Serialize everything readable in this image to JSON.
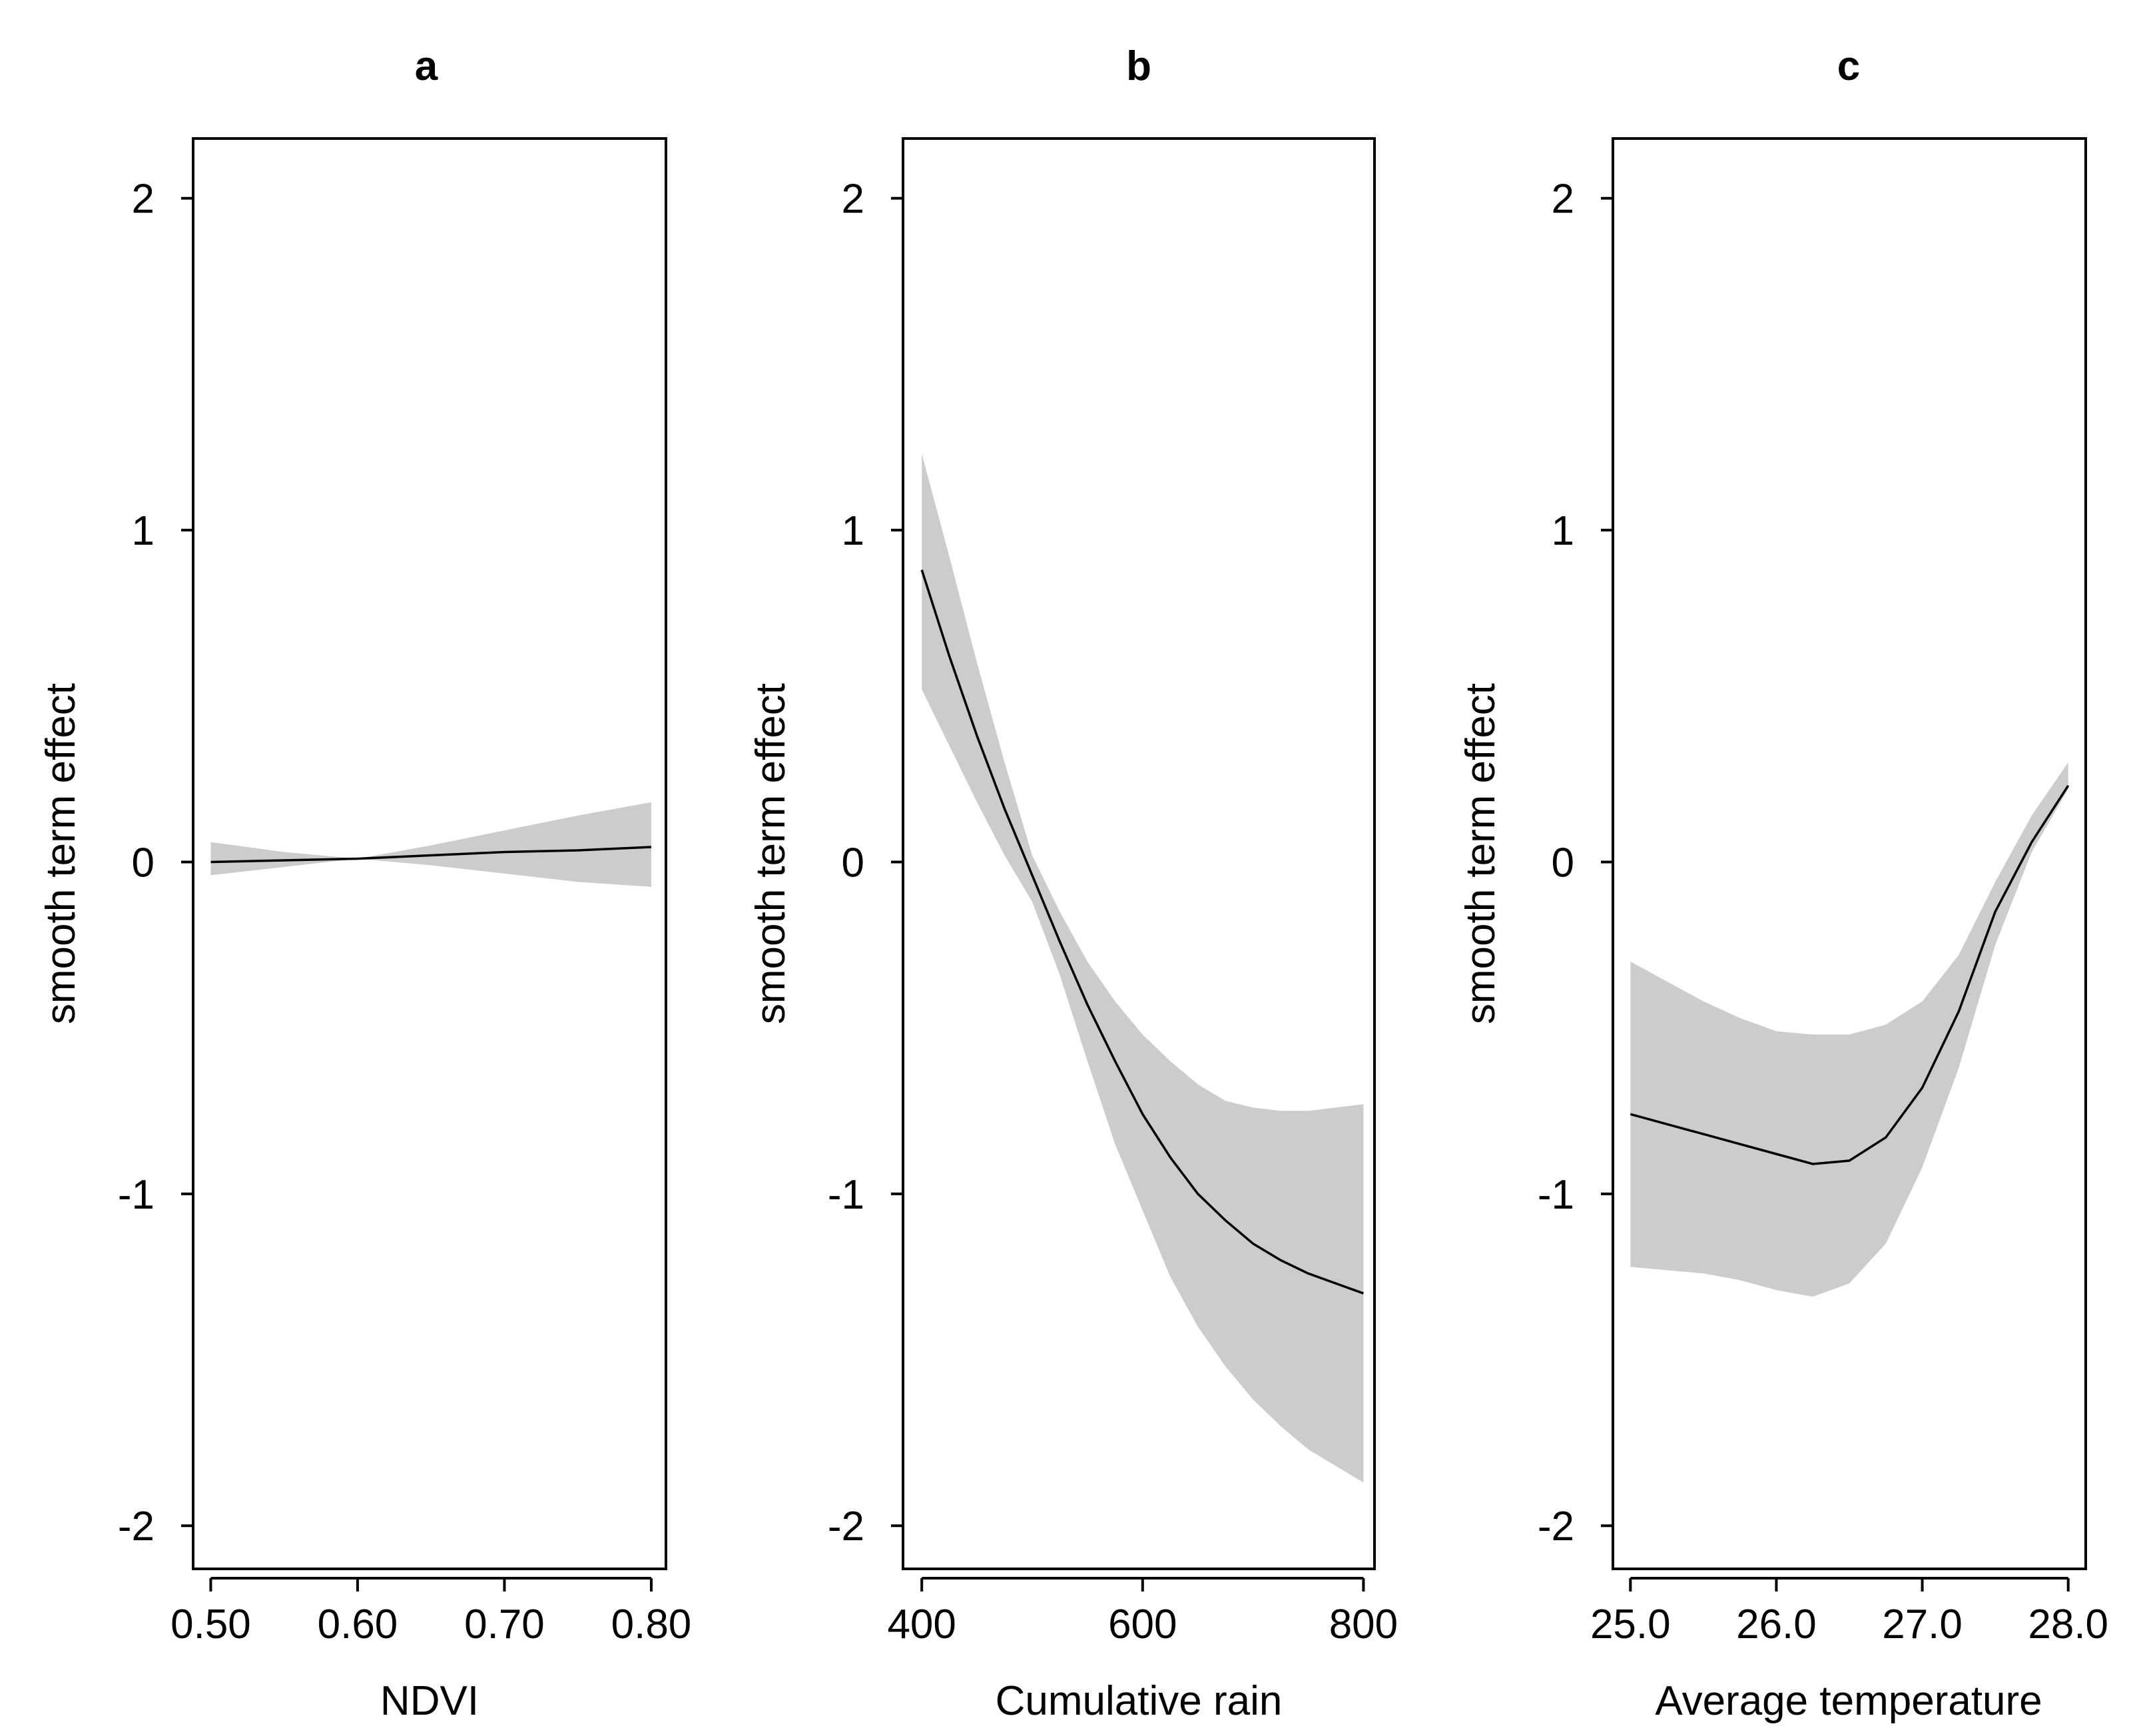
{
  "chart_data": [
    {
      "type": "line",
      "panel": "a",
      "title": "a",
      "xlabel": "NDVI",
      "ylabel": "smooth term effect",
      "xlim": [
        0.488,
        0.81
      ],
      "ylim": [
        -2.13,
        2.18
      ],
      "xticks": [
        0.5,
        0.6,
        0.7,
        0.8
      ],
      "xtick_labels": [
        "0.50",
        "0.60",
        "0.70",
        "0.80"
      ],
      "yticks": [
        -2,
        -1,
        0,
        1,
        2
      ],
      "ytick_labels": [
        "-2",
        "-1",
        "0",
        "1",
        "2"
      ],
      "x": [
        0.5,
        0.55,
        0.6,
        0.65,
        0.7,
        0.75,
        0.8
      ],
      "y": [
        0.0,
        0.005,
        0.01,
        0.02,
        0.03,
        0.035,
        0.045
      ],
      "lower": [
        -0.04,
        -0.015,
        0.01,
        -0.01,
        -0.035,
        -0.06,
        -0.075
      ],
      "upper": [
        0.06,
        0.03,
        0.01,
        0.05,
        0.095,
        0.14,
        0.18
      ]
    },
    {
      "type": "line",
      "panel": "b",
      "title": "b",
      "xlabel": "Cumulative rain",
      "ylabel": "smooth term effect",
      "xlim": [
        383,
        810
      ],
      "ylim": [
        -2.13,
        2.18
      ],
      "xticks": [
        400,
        600,
        800
      ],
      "xtick_labels": [
        "400",
        "600",
        "800"
      ],
      "yticks": [
        -2,
        -1,
        0,
        1,
        2
      ],
      "ytick_labels": [
        "-2",
        "-1",
        "0",
        "1",
        "2"
      ],
      "x": [
        400,
        425,
        450,
        475,
        500,
        525,
        550,
        575,
        600,
        625,
        650,
        675,
        700,
        725,
        750,
        775,
        800
      ],
      "y": [
        0.88,
        0.62,
        0.38,
        0.16,
        -0.04,
        -0.24,
        -0.43,
        -0.6,
        -0.76,
        -0.89,
        -1.0,
        -1.08,
        -1.15,
        -1.2,
        -1.24,
        -1.27,
        -1.3
      ],
      "lower": [
        0.52,
        0.35,
        0.18,
        0.02,
        -0.12,
        -0.34,
        -0.6,
        -0.85,
        -1.05,
        -1.25,
        -1.4,
        -1.52,
        -1.62,
        -1.7,
        -1.77,
        -1.82,
        -1.87
      ],
      "upper": [
        1.23,
        0.92,
        0.6,
        0.3,
        0.02,
        -0.15,
        -0.3,
        -0.42,
        -0.52,
        -0.6,
        -0.67,
        -0.72,
        -0.74,
        -0.75,
        -0.75,
        -0.74,
        -0.73
      ]
    },
    {
      "type": "line",
      "panel": "c",
      "title": "c",
      "xlabel": "Average temperature",
      "ylabel": "smooth term effect",
      "xlim": [
        24.88,
        28.12
      ],
      "ylim": [
        -2.13,
        2.18
      ],
      "xticks": [
        25.0,
        26.0,
        27.0,
        28.0
      ],
      "xtick_labels": [
        "25.0",
        "26.0",
        "27.0",
        "28.0"
      ],
      "yticks": [
        -2,
        -1,
        0,
        1,
        2
      ],
      "ytick_labels": [
        "-2",
        "-1",
        "0",
        "1",
        "2"
      ],
      "x": [
        25.0,
        25.25,
        25.5,
        25.75,
        26.0,
        26.25,
        26.5,
        26.75,
        27.0,
        27.25,
        27.5,
        27.75,
        28.0
      ],
      "y": [
        -0.76,
        -0.79,
        -0.82,
        -0.85,
        -0.88,
        -0.91,
        -0.9,
        -0.83,
        -0.68,
        -0.45,
        -0.15,
        0.06,
        0.23
      ],
      "lower": [
        -1.22,
        -1.23,
        -1.24,
        -1.26,
        -1.29,
        -1.31,
        -1.27,
        -1.15,
        -0.92,
        -0.62,
        -0.25,
        0.03,
        0.22
      ],
      "upper": [
        -0.3,
        -0.36,
        -0.42,
        -0.47,
        -0.51,
        -0.52,
        -0.52,
        -0.49,
        -0.42,
        -0.28,
        -0.06,
        0.14,
        0.3
      ]
    }
  ]
}
